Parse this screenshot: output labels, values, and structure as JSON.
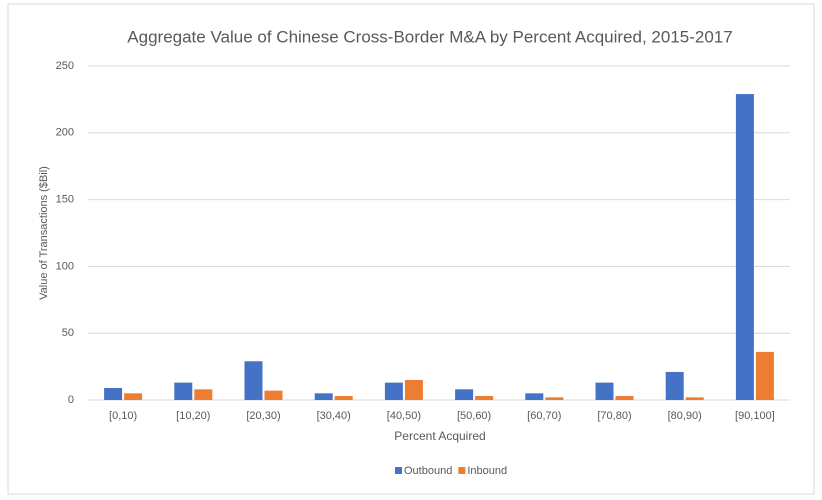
{
  "chart_data": {
    "type": "bar",
    "title": "Aggregate Value of Chinese  Cross-Border  M&A by Percent Acquired, 2015-2017",
    "x_label": "Percent  Acquired",
    "y_label": "Value of Transactions ($Bil)",
    "categories": [
      "[0,10)",
      "[10,20)",
      "[20,30)",
      "[30,40)",
      "[40,50)",
      "[50,60)",
      "[60,70)",
      "[70,80)",
      "[80,90)",
      "[90,100]"
    ],
    "series": [
      {
        "name": "Outbound",
        "color": "#4472c4",
        "values": [
          9,
          13,
          29,
          5,
          13,
          8,
          5,
          13,
          21,
          229
        ]
      },
      {
        "name": "Inbound",
        "color": "#ed7d31",
        "values": [
          5,
          8,
          7,
          3,
          15,
          3,
          2,
          3,
          2,
          36
        ]
      }
    ],
    "ylim": [
      0,
      250
    ],
    "yticks": [
      0,
      50,
      100,
      150,
      200,
      250
    ],
    "grid": true,
    "legend": "bottom"
  }
}
